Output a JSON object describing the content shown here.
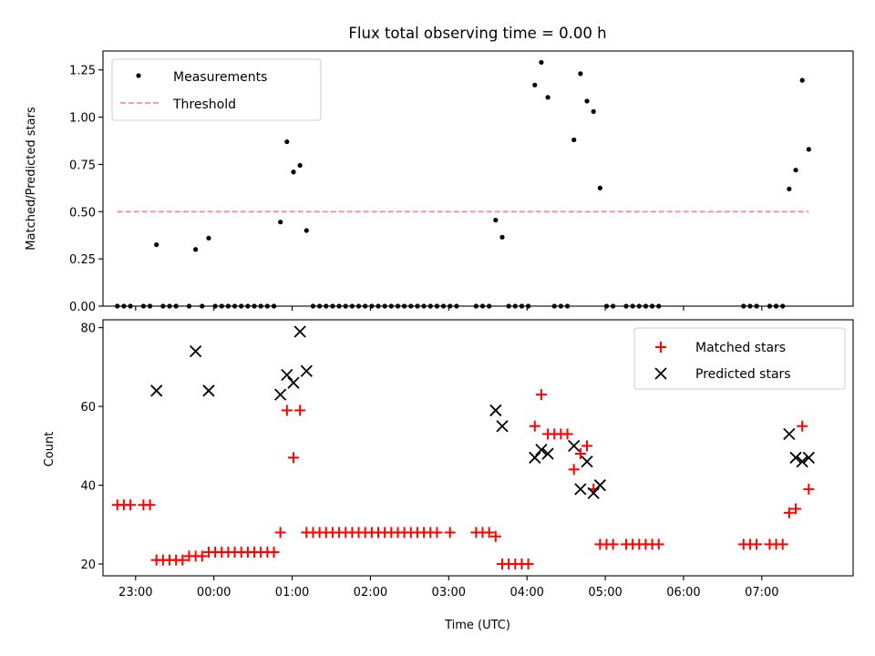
{
  "chart_data": [
    {
      "type": "scatter",
      "title": "Flux total observing time = 0.00 h",
      "ylabel": "Matched/Predicted stars",
      "ylim": [
        0,
        1.35
      ],
      "yticks": [
        "0.00",
        "0.25",
        "0.50",
        "0.75",
        "1.00",
        "1.25"
      ],
      "legend_position": "top-left",
      "colors": {
        "measurements": "#000000",
        "threshold": "#ff7f7f"
      },
      "series": [
        {
          "name": "Measurements",
          "marker": "dot",
          "points": [
            [
              "22:46",
              0.0
            ],
            [
              "22:51",
              0.0
            ],
            [
              "22:56",
              0.0
            ],
            [
              "23:06",
              0.0
            ],
            [
              "23:11",
              0.0
            ],
            [
              "23:16",
              0.325
            ],
            [
              "23:21",
              0.0
            ],
            [
              "23:26",
              0.0
            ],
            [
              "23:31",
              0.0
            ],
            [
              "23:41",
              0.0
            ],
            [
              "23:46",
              0.3
            ],
            [
              "23:51",
              0.0
            ],
            [
              "23:56",
              0.36
            ],
            [
              "00:01",
              0.0
            ],
            [
              "00:06",
              0.0
            ],
            [
              "00:11",
              0.0
            ],
            [
              "00:16",
              0.0
            ],
            [
              "00:21",
              0.0
            ],
            [
              "00:26",
              0.0
            ],
            [
              "00:31",
              0.0
            ],
            [
              "00:36",
              0.0
            ],
            [
              "00:41",
              0.0
            ],
            [
              "00:46",
              0.0
            ],
            [
              "00:51",
              0.445
            ],
            [
              "00:56",
              0.87
            ],
            [
              "01:01",
              0.71
            ],
            [
              "01:06",
              0.745
            ],
            [
              "01:11",
              0.4
            ],
            [
              "01:16",
              0.0
            ],
            [
              "01:21",
              0.0
            ],
            [
              "01:26",
              0.0
            ],
            [
              "01:31",
              0.0
            ],
            [
              "01:36",
              0.0
            ],
            [
              "01:41",
              0.0
            ],
            [
              "01:46",
              0.0
            ],
            [
              "01:51",
              0.0
            ],
            [
              "01:56",
              0.0
            ],
            [
              "02:01",
              0.0
            ],
            [
              "02:06",
              0.0
            ],
            [
              "02:11",
              0.0
            ],
            [
              "02:16",
              0.0
            ],
            [
              "02:21",
              0.0
            ],
            [
              "02:26",
              0.0
            ],
            [
              "02:31",
              0.0
            ],
            [
              "02:36",
              0.0
            ],
            [
              "02:41",
              0.0
            ],
            [
              "02:46",
              0.0
            ],
            [
              "02:51",
              0.0
            ],
            [
              "02:56",
              0.0
            ],
            [
              "03:01",
              0.0
            ],
            [
              "03:06",
              0.0
            ],
            [
              "03:21",
              0.0
            ],
            [
              "03:26",
              0.0
            ],
            [
              "03:31",
              0.0
            ],
            [
              "03:36",
              0.455
            ],
            [
              "03:41",
              0.365
            ],
            [
              "03:46",
              0.0
            ],
            [
              "03:51",
              0.0
            ],
            [
              "03:56",
              0.0
            ],
            [
              "04:01",
              0.0
            ],
            [
              "04:06",
              1.17
            ],
            [
              "04:11",
              1.29
            ],
            [
              "04:16",
              1.105
            ],
            [
              "04:21",
              0.0
            ],
            [
              "04:26",
              0.0
            ],
            [
              "04:31",
              0.0
            ],
            [
              "04:36",
              0.88
            ],
            [
              "04:41",
              1.23
            ],
            [
              "04:46",
              1.085
            ],
            [
              "04:51",
              1.03
            ],
            [
              "04:56",
              0.625
            ],
            [
              "05:01",
              0.0
            ],
            [
              "05:06",
              0.0
            ],
            [
              "05:16",
              0.0
            ],
            [
              "05:21",
              0.0
            ],
            [
              "05:26",
              0.0
            ],
            [
              "05:31",
              0.0
            ],
            [
              "05:36",
              0.0
            ],
            [
              "05:41",
              0.0
            ],
            [
              "06:46",
              0.0
            ],
            [
              "06:51",
              0.0
            ],
            [
              "06:56",
              0.0
            ],
            [
              "07:06",
              0.0
            ],
            [
              "07:11",
              0.0
            ],
            [
              "07:16",
              0.0
            ],
            [
              "07:21",
              0.62
            ],
            [
              "07:26",
              0.72
            ],
            [
              "07:31",
              1.195
            ],
            [
              "07:36",
              0.83
            ]
          ]
        },
        {
          "name": "Threshold",
          "marker": "dashed-line",
          "points": [
            [
              "22:46",
              0.5
            ],
            [
              "07:36",
              0.5
            ]
          ]
        }
      ]
    },
    {
      "type": "scatter",
      "xlabel": "Time (UTC)",
      "ylabel": "Count",
      "ylim": [
        17,
        82
      ],
      "yticks": [
        "20",
        "40",
        "60",
        "80"
      ],
      "xticks": [
        "23:00",
        "00:00",
        "01:00",
        "02:00",
        "03:00",
        "04:00",
        "05:00",
        "06:00",
        "07:00"
      ],
      "legend_position": "top-right",
      "colors": {
        "matched": "#ff0000",
        "predicted": "#000000"
      },
      "series": [
        {
          "name": "Matched stars",
          "marker": "plus",
          "points": [
            [
              "22:46",
              35
            ],
            [
              "22:51",
              35
            ],
            [
              "22:56",
              35
            ],
            [
              "23:06",
              35
            ],
            [
              "23:11",
              35
            ],
            [
              "23:16",
              21
            ],
            [
              "23:21",
              21
            ],
            [
              "23:26",
              21
            ],
            [
              "23:31",
              21
            ],
            [
              "23:36",
              21
            ],
            [
              "23:41",
              22
            ],
            [
              "23:46",
              22
            ],
            [
              "23:51",
              22
            ],
            [
              "23:56",
              23
            ],
            [
              "00:01",
              23
            ],
            [
              "00:06",
              23
            ],
            [
              "00:11",
              23
            ],
            [
              "00:16",
              23
            ],
            [
              "00:21",
              23
            ],
            [
              "00:26",
              23
            ],
            [
              "00:31",
              23
            ],
            [
              "00:36",
              23
            ],
            [
              "00:41",
              23
            ],
            [
              "00:46",
              23
            ],
            [
              "00:51",
              28
            ],
            [
              "00:56",
              59
            ],
            [
              "01:01",
              47
            ],
            [
              "01:06",
              59
            ],
            [
              "01:11",
              28
            ],
            [
              "01:16",
              28
            ],
            [
              "01:21",
              28
            ],
            [
              "01:26",
              28
            ],
            [
              "01:31",
              28
            ],
            [
              "01:36",
              28
            ],
            [
              "01:41",
              28
            ],
            [
              "01:46",
              28
            ],
            [
              "01:51",
              28
            ],
            [
              "01:56",
              28
            ],
            [
              "02:01",
              28
            ],
            [
              "02:06",
              28
            ],
            [
              "02:11",
              28
            ],
            [
              "02:16",
              28
            ],
            [
              "02:21",
              28
            ],
            [
              "02:26",
              28
            ],
            [
              "02:31",
              28
            ],
            [
              "02:36",
              28
            ],
            [
              "02:41",
              28
            ],
            [
              "02:46",
              28
            ],
            [
              "02:51",
              28
            ],
            [
              "03:01",
              28
            ],
            [
              "03:21",
              28
            ],
            [
              "03:26",
              28
            ],
            [
              "03:31",
              28
            ],
            [
              "03:36",
              27
            ],
            [
              "03:41",
              20
            ],
            [
              "03:46",
              20
            ],
            [
              "03:51",
              20
            ],
            [
              "03:56",
              20
            ],
            [
              "04:01",
              20
            ],
            [
              "04:06",
              55
            ],
            [
              "04:11",
              63
            ],
            [
              "04:16",
              53
            ],
            [
              "04:21",
              53
            ],
            [
              "04:26",
              53
            ],
            [
              "04:31",
              53
            ],
            [
              "04:36",
              44
            ],
            [
              "04:41",
              48
            ],
            [
              "04:46",
              50
            ],
            [
              "04:51",
              39
            ],
            [
              "04:56",
              25
            ],
            [
              "05:01",
              25
            ],
            [
              "05:06",
              25
            ],
            [
              "05:16",
              25
            ],
            [
              "05:21",
              25
            ],
            [
              "05:26",
              25
            ],
            [
              "05:31",
              25
            ],
            [
              "05:36",
              25
            ],
            [
              "05:41",
              25
            ],
            [
              "06:46",
              25
            ],
            [
              "06:51",
              25
            ],
            [
              "06:56",
              25
            ],
            [
              "07:06",
              25
            ],
            [
              "07:11",
              25
            ],
            [
              "07:16",
              25
            ],
            [
              "07:21",
              33
            ],
            [
              "07:26",
              34
            ],
            [
              "07:31",
              55
            ],
            [
              "07:36",
              39
            ]
          ]
        },
        {
          "name": "Predicted stars",
          "marker": "x",
          "points": [
            [
              "23:16",
              64
            ],
            [
              "23:46",
              74
            ],
            [
              "23:56",
              64
            ],
            [
              "00:51",
              63
            ],
            [
              "00:56",
              68
            ],
            [
              "01:01",
              66
            ],
            [
              "01:06",
              79
            ],
            [
              "01:11",
              69
            ],
            [
              "03:36",
              59
            ],
            [
              "03:41",
              55
            ],
            [
              "04:06",
              47
            ],
            [
              "04:11",
              49
            ],
            [
              "04:16",
              48
            ],
            [
              "04:36",
              50
            ],
            [
              "04:41",
              39
            ],
            [
              "04:46",
              46
            ],
            [
              "04:51",
              38
            ],
            [
              "04:56",
              40
            ],
            [
              "07:21",
              53
            ],
            [
              "07:26",
              47
            ],
            [
              "07:31",
              46
            ],
            [
              "07:36",
              47
            ]
          ]
        }
      ]
    }
  ]
}
